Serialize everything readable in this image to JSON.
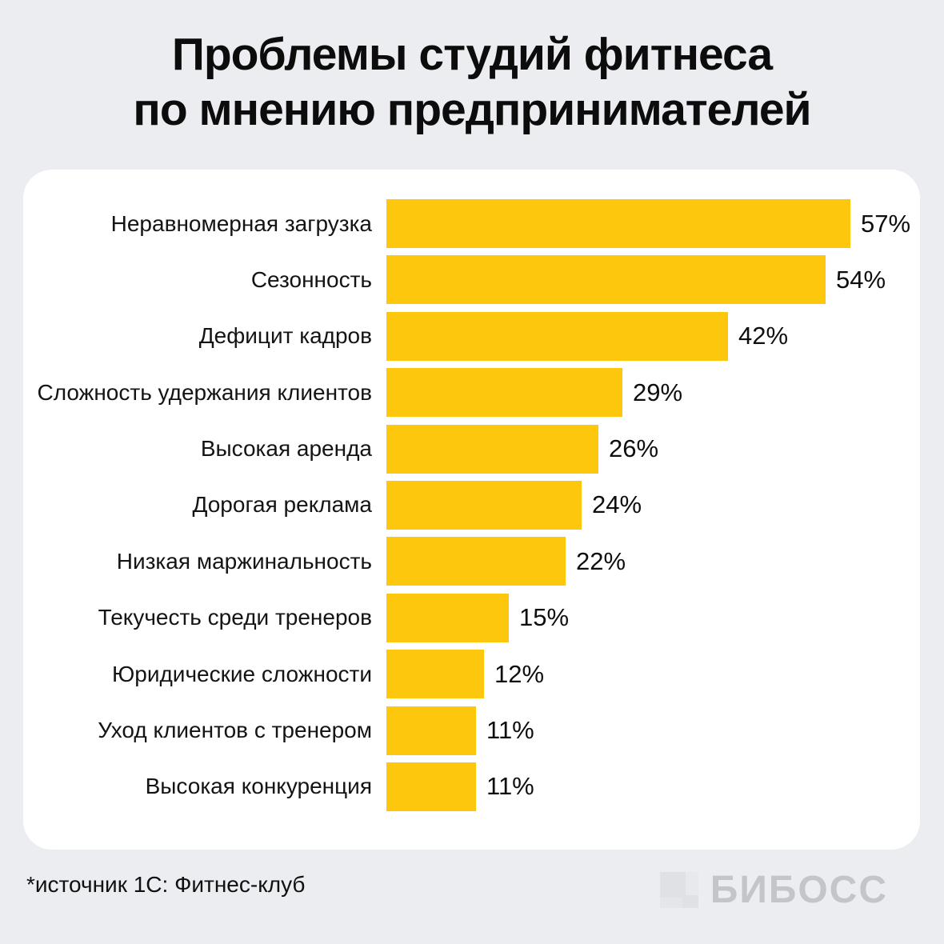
{
  "title": {
    "line1": "Проблемы студий фитнеса",
    "line2": "по мнению предпринимателей"
  },
  "chart_data": {
    "type": "bar",
    "orientation": "horizontal",
    "title": "Проблемы студий фитнеса по мнению предпринимателей",
    "categories": [
      "Неравномерная загрузка",
      "Сезонность",
      "Дефицит кадров",
      "Сложность удержания клиентов",
      "Высокая аренда",
      "Дорогая реклама",
      "Низкая маржинальность",
      "Текучесть среди тренеров",
      "Юридические сложности",
      "Уход клиентов с тренером",
      "Высокая конкуренция"
    ],
    "values": [
      57,
      54,
      42,
      29,
      26,
      24,
      22,
      15,
      12,
      11,
      11
    ],
    "value_suffix": "%",
    "xlim": [
      0,
      57
    ],
    "grid": false,
    "legend": false,
    "bar_color": "#FCC70D"
  },
  "footer": {
    "source": "*источник 1С: Фитнес-клуб",
    "logo_text": "БИБОСС"
  },
  "colors": {
    "background": "#ECEDF1",
    "card": "#FFFFFF",
    "bar": "#FCC70D",
    "text": "#0c0c0c",
    "logo_gray": "#C3C5CB"
  }
}
